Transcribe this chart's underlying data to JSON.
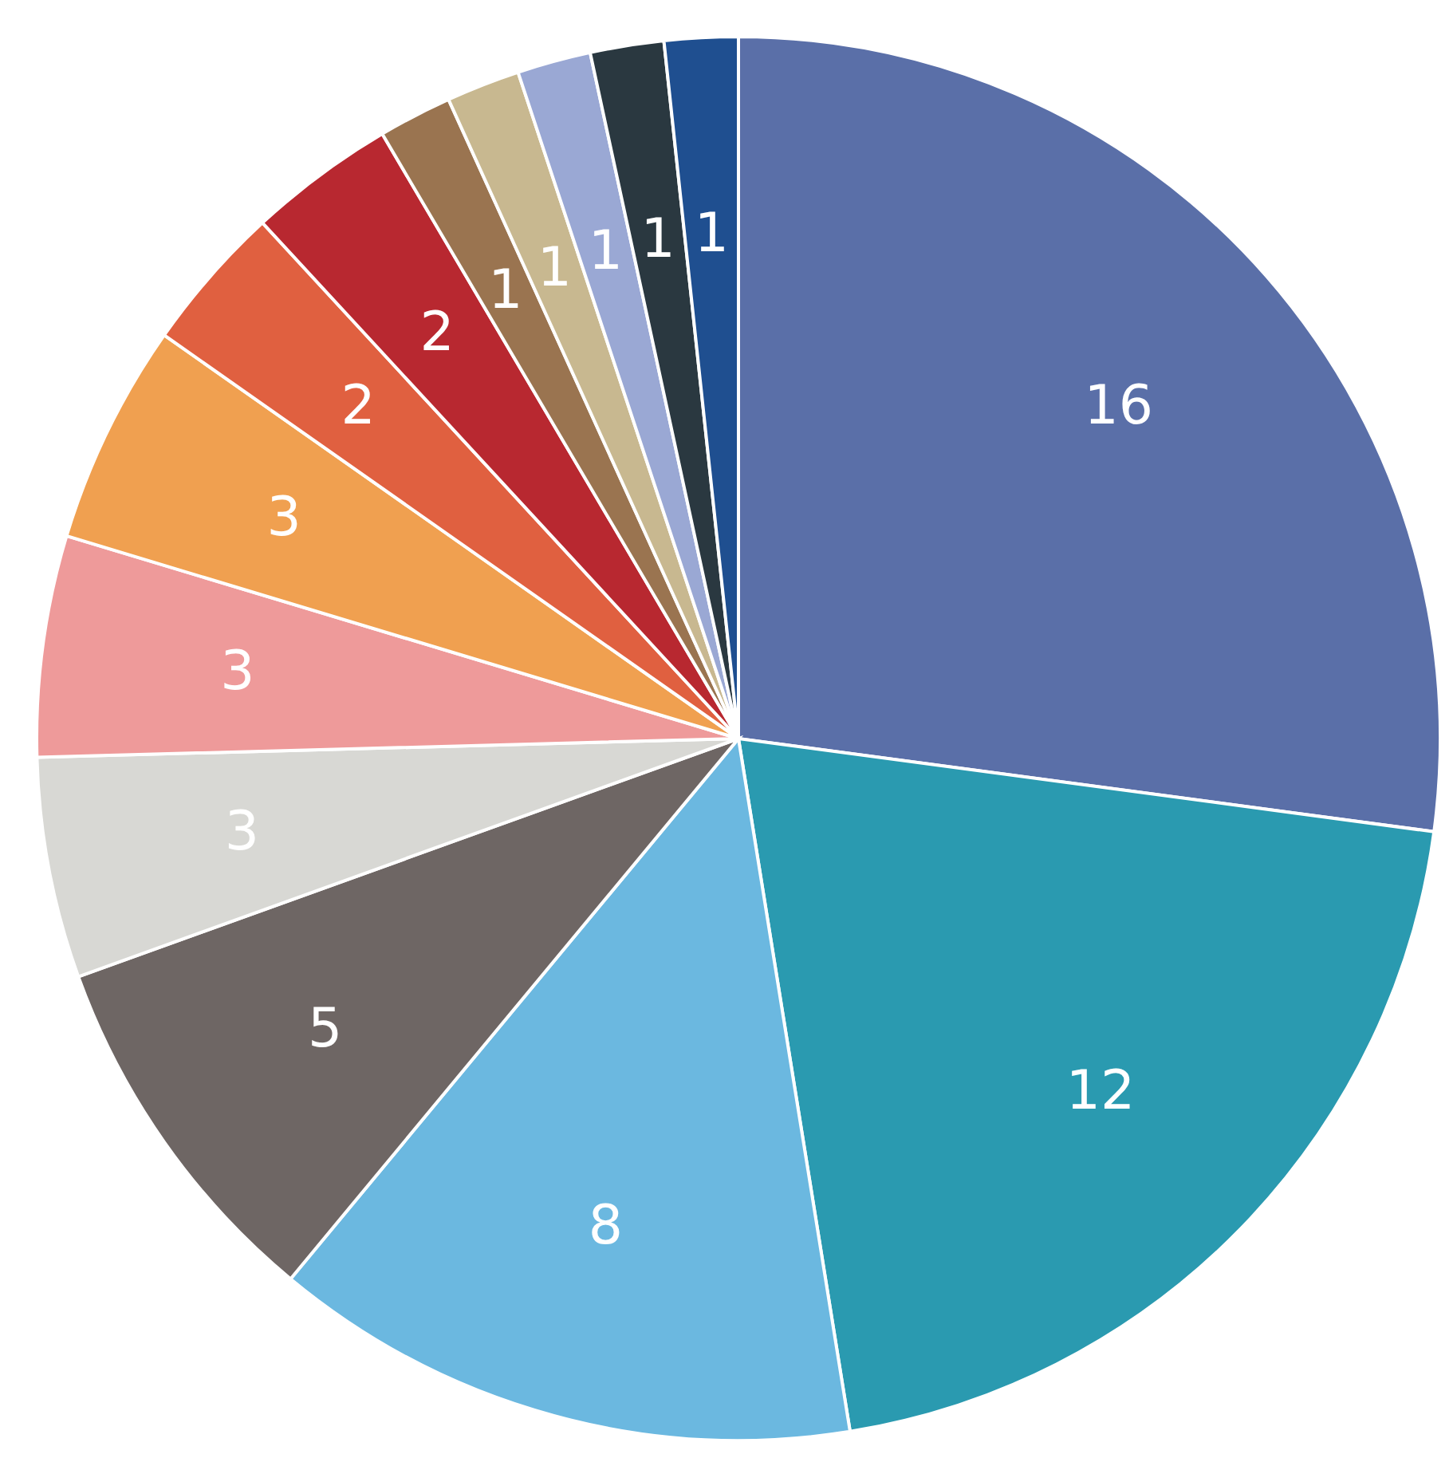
{
  "chart_data": {
    "type": "pie",
    "categories": [
      null,
      null,
      null,
      null,
      null,
      null,
      null,
      null,
      null,
      null,
      null,
      null,
      null,
      null
    ],
    "values": [
      16,
      12,
      8,
      5,
      3,
      3,
      3,
      2,
      2,
      1,
      1,
      1,
      1,
      1
    ],
    "colors": [
      "#5a6fa8",
      "#2a9ab0",
      "#6bb8e0",
      "#6e6664",
      "#d8d8d4",
      "#ee9a9a",
      "#f0a050",
      "#e06040",
      "#b82830",
      "#9a7450",
      "#c8b890",
      "#9aa8d4",
      "#2a3840",
      "#1f4f90"
    ],
    "data_labels": true
  }
}
